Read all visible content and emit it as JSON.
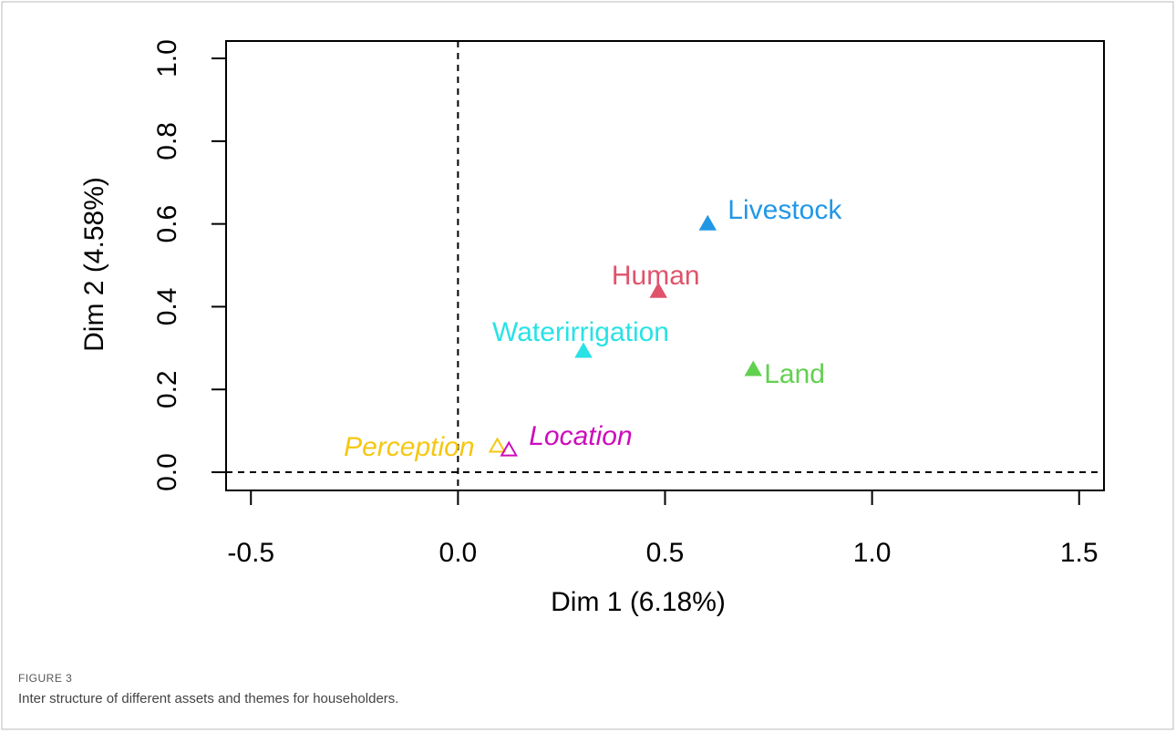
{
  "chart_data": {
    "type": "scatter",
    "x_label": "Dim 1 (6.18%)",
    "y_label": "Dim 2 (4.58%)",
    "xlim": [
      -0.56,
      1.56
    ],
    "ylim": [
      -0.044,
      1.042
    ],
    "xticks": [
      {
        "value": -0.5,
        "label": "-0.5"
      },
      {
        "value": 0,
        "label": "0.0"
      },
      {
        "value": 0.5,
        "label": "0.5"
      },
      {
        "value": 1,
        "label": "1.0"
      },
      {
        "value": 1.5,
        "label": "1.5"
      }
    ],
    "yticks": [
      {
        "value": 0,
        "label": "0.0"
      },
      {
        "value": 0.2,
        "label": "0.2"
      },
      {
        "value": 0.4,
        "label": "0.4"
      },
      {
        "value": 0.6,
        "label": "0.6"
      },
      {
        "value": 0.8,
        "label": "0.8"
      },
      {
        "value": 1,
        "label": "1.0"
      }
    ],
    "zero_lines": true,
    "series": [
      {
        "name": "Livestock",
        "color": "#2297E6",
        "filled": true,
        "x": [
          0.603
        ],
        "y": [
          0.599
        ]
      },
      {
        "name": "Human",
        "color": "#DF536B",
        "filled": true,
        "x": [
          0.484
        ],
        "y": [
          0.436
        ]
      },
      {
        "name": "Waterirrigation",
        "color": "#28E2E5",
        "filled": true,
        "x": [
          0.303
        ],
        "y": [
          0.291
        ]
      },
      {
        "name": "Land",
        "color": "#61D04F",
        "filled": true,
        "x": [
          0.713
        ],
        "y": [
          0.247
        ]
      },
      {
        "name": "Perception",
        "color": "#F5C710",
        "filled": false,
        "x": [
          0.095
        ],
        "y": [
          0.062
        ]
      },
      {
        "name": "Location",
        "color": "#CD0BBC",
        "filled": false,
        "x": [
          0.123
        ],
        "y": [
          0.053
        ]
      }
    ]
  },
  "caption": {
    "label": "FIGURE 3",
    "text": "Inter structure of different assets and themes for householders."
  }
}
